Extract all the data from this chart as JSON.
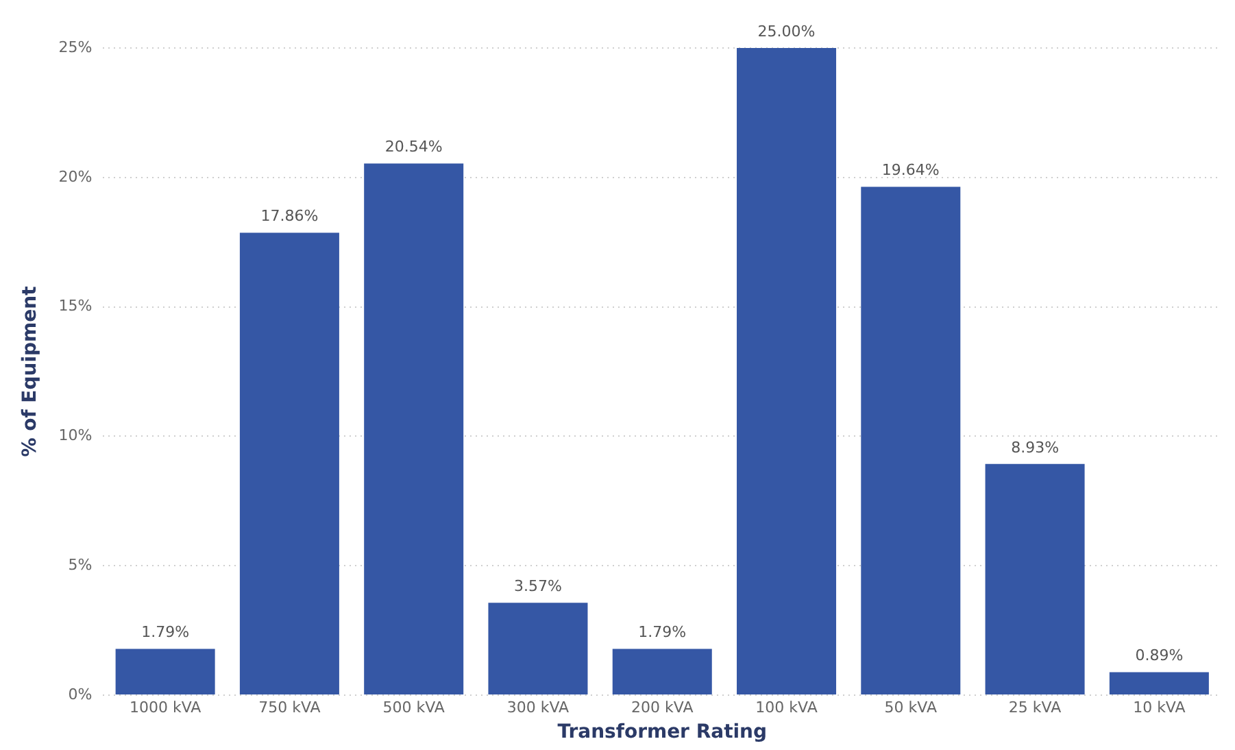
{
  "chart_data": {
    "type": "bar",
    "xlabel": "Transformer Rating",
    "ylabel": "% of Equipment",
    "categories": [
      "1000 kVA",
      "750 kVA",
      "500 kVA",
      "300 kVA",
      "200 kVA",
      "100 kVA",
      "50 kVA",
      "25 kVA",
      "10 kVA"
    ],
    "values": [
      1.79,
      17.86,
      20.54,
      3.57,
      1.79,
      25.0,
      19.64,
      8.93,
      0.89
    ],
    "value_labels": [
      "1.79%",
      "17.86%",
      "20.54%",
      "3.57%",
      "1.79%",
      "25.00%",
      "19.64%",
      "8.93%",
      "0.89%"
    ],
    "color": "#3557a5",
    "ylim": [
      0,
      25
    ],
    "yticks": [
      {
        "value": 0,
        "label": "0%"
      },
      {
        "value": 5,
        "label": "5%"
      },
      {
        "value": 10,
        "label": "10%"
      },
      {
        "value": 15,
        "label": "15%"
      },
      {
        "value": 20,
        "label": "20%"
      },
      {
        "value": 25,
        "label": "25%"
      }
    ],
    "grid": "y",
    "legend": false
  }
}
